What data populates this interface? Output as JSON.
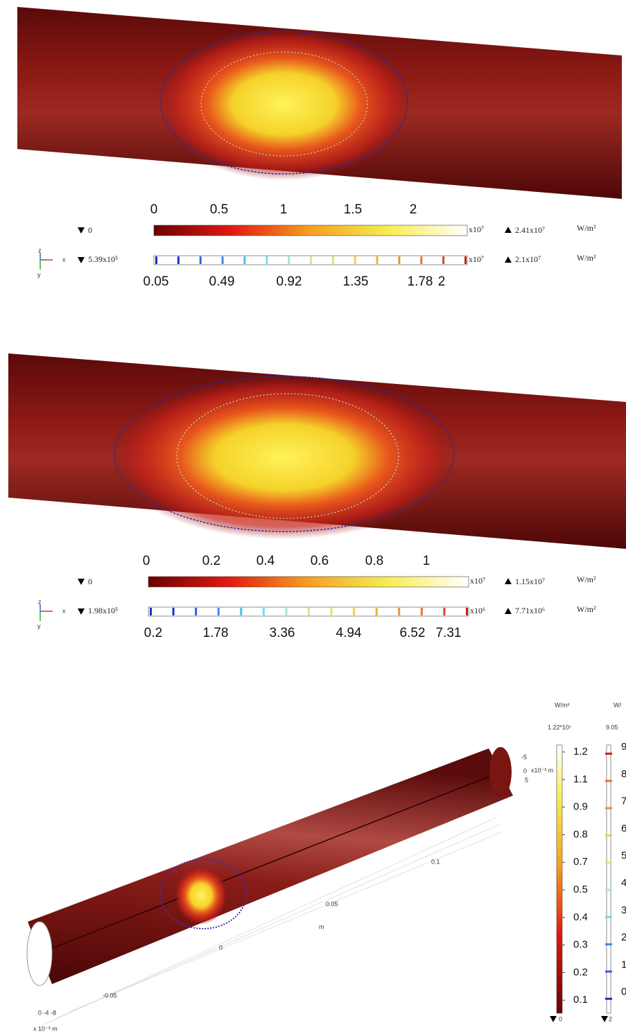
{
  "panels": [
    {
      "surface_legend": {
        "ticks": [
          "0",
          "0.5",
          "1",
          "1.5",
          "2"
        ],
        "min": "0",
        "multiplier": "x10⁷",
        "max": "2.41x10⁷",
        "unit": "W/m²"
      },
      "contour_legend": {
        "min": "5.39x10⁵",
        "ticks": [
          "0.05",
          "0.49",
          "0.92",
          "1.35",
          "1.78",
          "2"
        ],
        "multiplier": "x10⁷",
        "max": "2.1x10⁷",
        "unit": "W/m²"
      },
      "axes": {
        "z": "z",
        "x": "x",
        "y": "y"
      }
    },
    {
      "surface_legend": {
        "ticks": [
          "0",
          "0.2",
          "0.4",
          "0.6",
          "0.8",
          "1"
        ],
        "min": "0",
        "multiplier": "x10⁷",
        "max": "1.15x10⁷",
        "unit": "W/m²"
      },
      "contour_legend": {
        "min": "1.98x10⁵",
        "ticks": [
          "0.2",
          "1.78",
          "3.36",
          "4.94",
          "6.52",
          "7.31"
        ],
        "multiplier": "x10⁶",
        "max": "7.71x10⁶",
        "unit": "W/m²"
      },
      "axes": {
        "z": "z",
        "x": "x",
        "y": "y"
      }
    },
    {
      "surface_legend": {
        "unit": "W/m²",
        "max": "1.22*10⁷",
        "ticks": [
          "1.2",
          "1.1",
          "0.9",
          "0.8",
          "0.7",
          "0.5",
          "0.4",
          "0.3",
          "0.2",
          "0.1"
        ],
        "min": "0"
      },
      "contour_legend": {
        "unit": "W/",
        "max": "9.05",
        "ticks": [
          "9",
          "8",
          "7",
          "6",
          "5",
          "4",
          "3",
          "2",
          "1",
          "0"
        ],
        "min": "2"
      },
      "axis_labels": [
        "-5",
        "0",
        "x10⁻³ m",
        "5",
        "0.1",
        "0.05",
        "m",
        "0",
        "-0.05",
        "0 -4 -8",
        "x 10⁻³ m"
      ]
    }
  ]
}
